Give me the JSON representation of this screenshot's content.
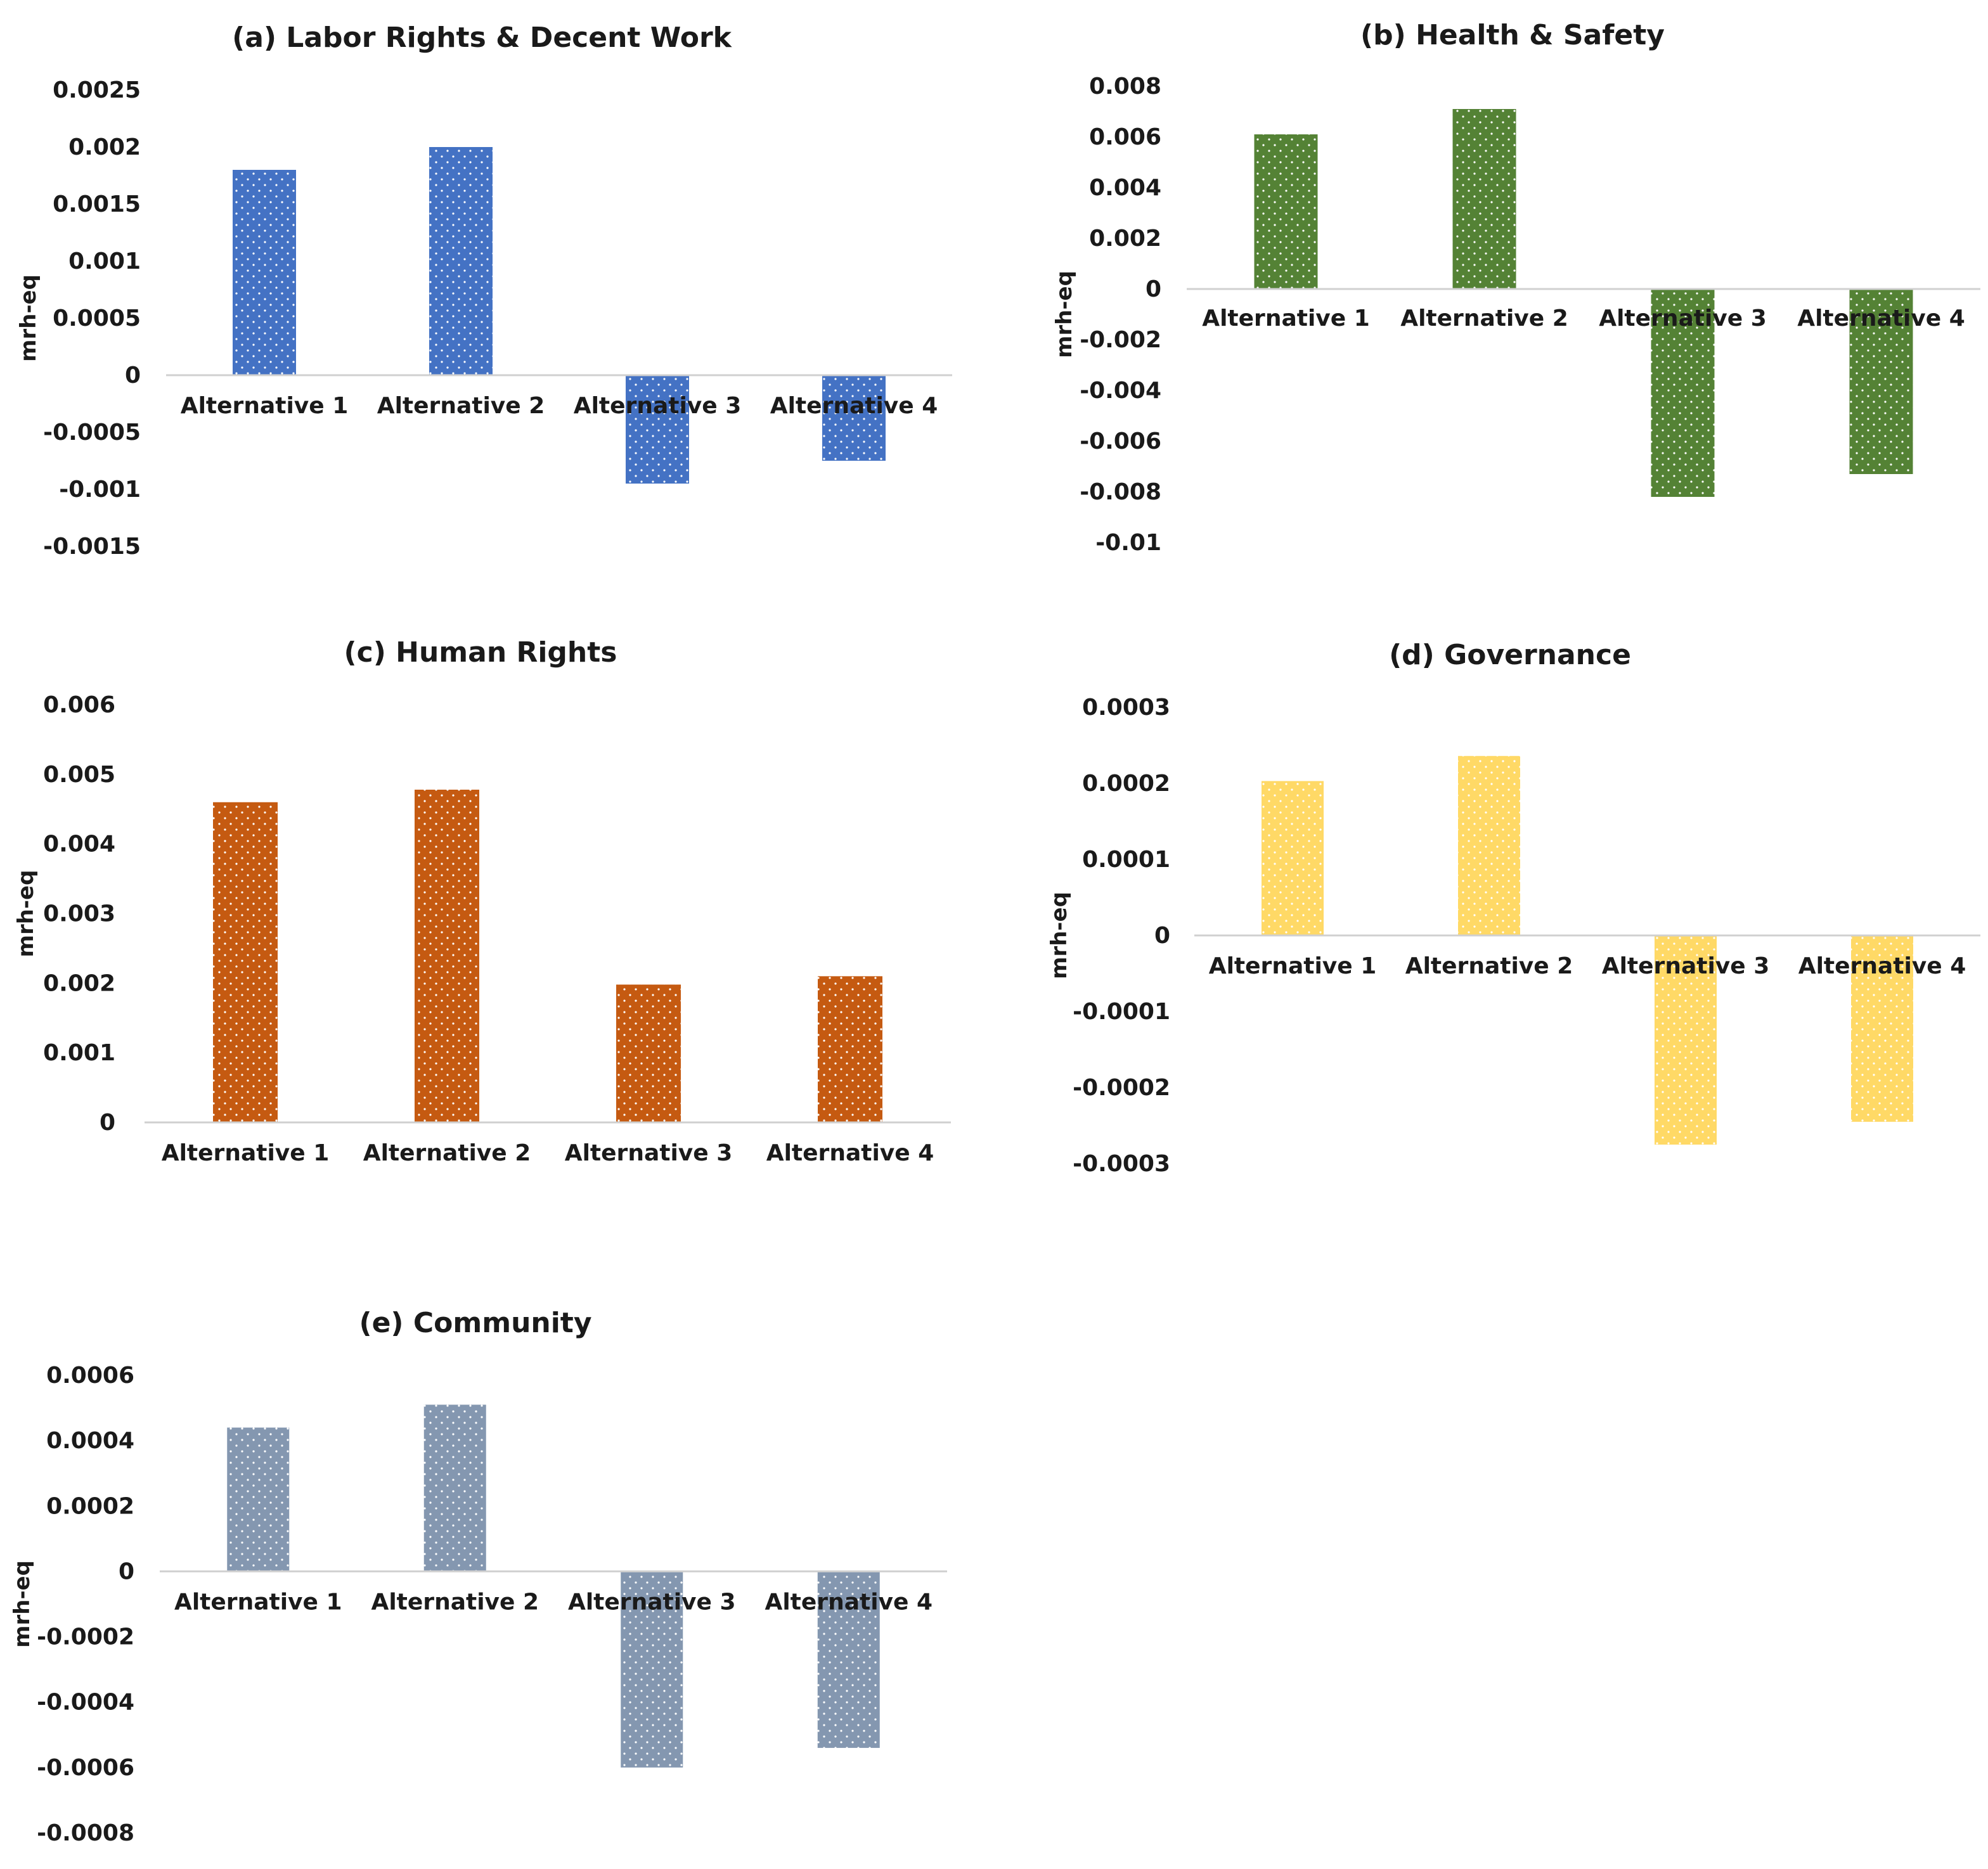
{
  "chart_data": [
    {
      "type": "bar",
      "title": "(a) Labor Rights & Decent Work",
      "ylabel": "mrh-eq",
      "xlabel": "",
      "color": "#4472C4",
      "categories": [
        "Alternative 1",
        "Alternative 2",
        "Alternative 3",
        "Alternative 4"
      ],
      "values": [
        0.0018,
        0.002,
        -0.00095,
        -0.00075
      ],
      "ylim": [
        -0.0015,
        0.0025
      ],
      "yticks": [
        0.0025,
        0.002,
        0.0015,
        0.001,
        0.0005,
        0,
        -0.0005,
        -0.001,
        -0.0015
      ],
      "ytick_labels": [
        "0.0025",
        "0.002",
        "0.0015",
        "0.001",
        "0.0005",
        "0",
        "-0.0005",
        "-0.001",
        "-0.0015"
      ],
      "grid": false
    },
    {
      "type": "bar",
      "title": "(b) Health & Safety",
      "ylabel": "mrh-eq",
      "xlabel": "",
      "color": "#548235",
      "categories": [
        "Alternative 1",
        "Alternative 2",
        "Alternative 3",
        "Alternative 4"
      ],
      "values": [
        0.0061,
        0.0071,
        -0.0082,
        -0.0073
      ],
      "ylim": [
        -0.01,
        0.008
      ],
      "yticks": [
        0.008,
        0.006,
        0.004,
        0.002,
        0,
        -0.002,
        -0.004,
        -0.006,
        -0.008,
        -0.01
      ],
      "ytick_labels": [
        "0.008",
        "0.006",
        "0.004",
        "0.002",
        "0",
        "-0.002",
        "-0.004",
        "-0.006",
        "-0.008",
        "-0.01"
      ],
      "grid": false
    },
    {
      "type": "bar",
      "title": "(c) Human Rights",
      "ylabel": "mrh-eq",
      "xlabel": "",
      "color": "#C55A11",
      "categories": [
        "Alternative 1",
        "Alternative 2",
        "Alternative 3",
        "Alternative 4"
      ],
      "values": [
        0.0046,
        0.00478,
        0.00198,
        0.0021
      ],
      "ylim": [
        0,
        0.006
      ],
      "yticks": [
        0.006,
        0.005,
        0.004,
        0.003,
        0.002,
        0.001,
        0
      ],
      "ytick_labels": [
        "0.006",
        "0.005",
        "0.004",
        "0.003",
        "0.002",
        "0.001",
        "0"
      ],
      "grid": false
    },
    {
      "type": "bar",
      "title": "(d) Governance",
      "ylabel": "mrh-eq",
      "xlabel": "",
      "color": "#FFD966",
      "categories": [
        "Alternative 1",
        "Alternative 2",
        "Alternative 3",
        "Alternative 4"
      ],
      "values": [
        0.000203,
        0.000236,
        -0.000275,
        -0.000245
      ],
      "ylim": [
        -0.0003,
        0.0003
      ],
      "yticks": [
        0.0003,
        0.0002,
        0.0001,
        0,
        -0.0001,
        -0.0002,
        -0.0003
      ],
      "ytick_labels": [
        "0.0003",
        "0.0002",
        "0.0001",
        "0",
        "-0.0001",
        "-0.0002",
        "-0.0003"
      ],
      "grid": false
    },
    {
      "type": "bar",
      "title": "(e) Community",
      "ylabel": "mrh-eq",
      "xlabel": "",
      "color": "#8497B0",
      "categories": [
        "Alternative 1",
        "Alternative 2",
        "Alternative 3",
        "Alternative 4"
      ],
      "values": [
        0.00044,
        0.00051,
        -0.0006,
        -0.00054
      ],
      "ylim": [
        -0.0008,
        0.0006
      ],
      "yticks": [
        0.0006,
        0.0004,
        0.0002,
        0,
        -0.0002,
        -0.0004,
        -0.0006,
        -0.0008
      ],
      "ytick_labels": [
        "0.0006",
        "0.0004",
        "0.0002",
        "0",
        "-0.0002",
        "-0.0004",
        "-0.0006",
        "-0.0008"
      ],
      "grid": false
    }
  ]
}
